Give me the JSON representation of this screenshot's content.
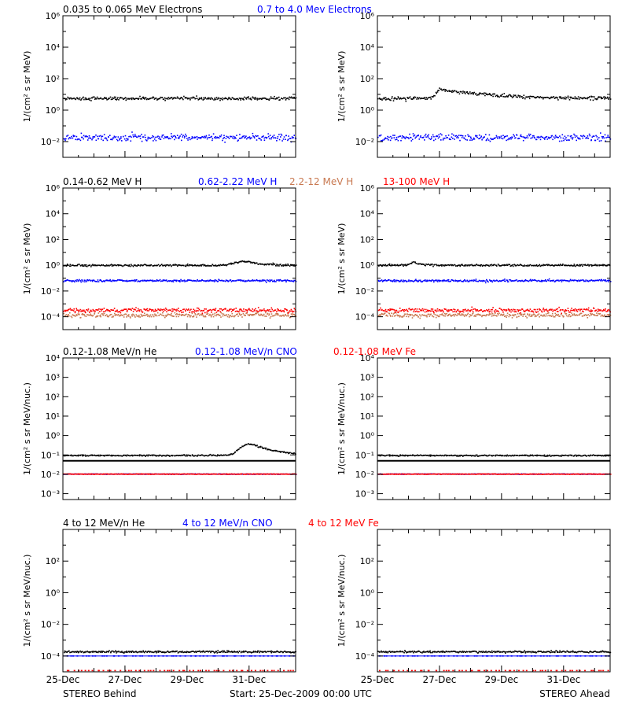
{
  "footer": {
    "behind": "STEREO Behind",
    "ahead": "STEREO Ahead",
    "start": "Start: 25-Dec-2009 00:00 UTC"
  },
  "x_axis": {
    "range": [
      "25-Dec-2009 00:00",
      "01-Jan-2010 12:00"
    ],
    "tick_labels": [
      "25-Dec",
      "27-Dec",
      "29-Dec",
      "31-Dec"
    ]
  },
  "chart_data": [
    {
      "type": "scatter",
      "row": "electrons",
      "side": "STEREO Behind",
      "ylabel": "1/(cm² s sr MeV)",
      "yscale": "log",
      "ylim": [
        0.001,
        1000000
      ],
      "ytick_labels": [
        "10⁻²",
        "10⁰",
        "10²",
        "10⁴",
        "10⁶"
      ],
      "legend_labels": [
        "0.035 to 0.065 MeV Electrons",
        "0.7 to 4.0 Mev Electrons"
      ],
      "series": [
        {
          "name": "0.035 to 0.065 MeV Electrons",
          "color": "#000000",
          "base": 6,
          "spread": 0.09,
          "x": [
            "25-Dec",
            "27-Dec",
            "29-Dec",
            "31-Dec",
            "01-Jan 12:00"
          ],
          "y": [
            6,
            6,
            6,
            6,
            6
          ]
        },
        {
          "name": "0.7 to 4.0 Mev Electrons",
          "color": "#0000ff",
          "base": 0.02,
          "spread": 0.18,
          "x": [
            "25-Dec",
            "27-Dec",
            "29-Dec",
            "31-Dec",
            "01-Jan 12:00"
          ],
          "y": [
            0.02,
            0.02,
            0.02,
            0.02,
            0.02
          ]
        }
      ]
    },
    {
      "type": "scatter",
      "row": "electrons",
      "side": "STEREO Ahead",
      "ylabel": "1/(cm² s sr MeV)",
      "yscale": "log",
      "ylim": [
        0.001,
        1000000
      ],
      "ytick_labels": [
        "10⁻²",
        "10⁰",
        "10²",
        "10⁴",
        "10⁶"
      ],
      "series": [
        {
          "name": "0.035 to 0.065 MeV Electrons",
          "color": "#000000",
          "base": 6,
          "spread": 0.09,
          "bump": {
            "center_day": 2.0,
            "peak": 22,
            "rise": 0.1,
            "decay": 1.2
          },
          "x": [
            "25-Dec",
            "26-Dec 18:00",
            "27-Dec",
            "29-Dec",
            "31-Dec"
          ],
          "y": [
            6,
            6,
            22,
            8,
            6
          ]
        },
        {
          "name": "0.7 to 4.0 Mev Electrons",
          "color": "#0000ff",
          "base": 0.02,
          "spread": 0.18,
          "x": [
            "25-Dec",
            "27-Dec",
            "29-Dec",
            "31-Dec"
          ],
          "y": [
            0.02,
            0.02,
            0.02,
            0.02
          ]
        }
      ]
    },
    {
      "type": "scatter",
      "row": "protons",
      "side": "STEREO Behind",
      "ylabel": "1/(cm² s sr MeV)",
      "yscale": "log",
      "ylim": [
        1e-05,
        1000000
      ],
      "ytick_labels": [
        "10⁻⁴",
        "10⁻²",
        "10⁰",
        "10²",
        "10⁴",
        "10⁶"
      ],
      "legend_labels": [
        "0.14-0.62 MeV H",
        "0.62-2.22 MeV H",
        "2.2-12 MeV H",
        "13-100 MeV H"
      ],
      "series": [
        {
          "name": "0.14-0.62 MeV H",
          "color": "#000000",
          "base": 1.1,
          "spread": 0.06,
          "bump": {
            "center_day": 5.9,
            "peak": 2.2,
            "rise": 0.3,
            "decay": 0.4
          },
          "x": [
            "25-Dec",
            "29-Dec",
            "30-Dec 21:00",
            "31-Dec"
          ],
          "y": [
            1.1,
            1.1,
            2.2,
            1.1
          ]
        },
        {
          "name": "0.62-2.22 MeV H",
          "color": "#0000ff",
          "base": 0.07,
          "spread": 0.07,
          "x": [
            "25-Dec",
            "31-Dec"
          ],
          "y": [
            0.07,
            0.07
          ]
        },
        {
          "name": "2.2-12 MeV H",
          "color": "#c87850",
          "base": 0.00015,
          "spread": 0.14,
          "x": [
            "25-Dec",
            "31-Dec"
          ],
          "y": [
            0.00015,
            0.00015
          ]
        },
        {
          "name": "13-100 MeV H",
          "color": "#ff0000",
          "base": 0.00035,
          "spread": 0.14,
          "x": [
            "25-Dec",
            "31-Dec"
          ],
          "y": [
            0.00035,
            0.00035
          ]
        }
      ]
    },
    {
      "type": "scatter",
      "row": "protons",
      "side": "STEREO Ahead",
      "ylabel": "1/(cm² s sr MeV)",
      "yscale": "log",
      "ylim": [
        1e-05,
        1000000
      ],
      "ytick_labels": [
        "10⁻⁴",
        "10⁻²",
        "10⁰",
        "10²",
        "10⁴",
        "10⁶"
      ],
      "series": [
        {
          "name": "0.14-0.62 MeV H",
          "color": "#000000",
          "base": 1.1,
          "spread": 0.06,
          "bump": {
            "center_day": 1.15,
            "peak": 2.0,
            "rise": 0.1,
            "decay": 0.2
          },
          "x": [
            "25-Dec",
            "26-Dec 04:00",
            "29-Dec",
            "31-Dec"
          ],
          "y": [
            1.1,
            2.0,
            1.1,
            1.1
          ]
        },
        {
          "name": "0.62-2.22 MeV H",
          "color": "#0000ff",
          "base": 0.07,
          "spread": 0.07,
          "x": [
            "25-Dec",
            "31-Dec"
          ],
          "y": [
            0.07,
            0.07
          ]
        },
        {
          "name": "2.2-12 MeV H",
          "color": "#c87850",
          "base": 0.00015,
          "spread": 0.14,
          "x": [
            "25-Dec",
            "31-Dec"
          ],
          "y": [
            0.00015,
            0.00015
          ]
        },
        {
          "name": "13-100 MeV H",
          "color": "#ff0000",
          "base": 0.00035,
          "spread": 0.14,
          "x": [
            "25-Dec",
            "31-Dec"
          ],
          "y": [
            0.00035,
            0.00035
          ]
        }
      ]
    },
    {
      "type": "scatter",
      "row": "suprathermal-ions",
      "side": "STEREO Behind",
      "ylabel": "1/(cm² s sr MeV/nuc.)",
      "yscale": "log",
      "ylim": [
        0.0005,
        10000
      ],
      "ytick_labels": [
        "10⁻³",
        "10⁻²",
        "10⁻¹",
        "10⁰",
        "10¹",
        "10²",
        "10³",
        "10⁴"
      ],
      "legend_labels": [
        "0.12-1.08 MeV/n He",
        "0.12-1.08 MeV/n CNO",
        "0.12-1.08 MeV Fe"
      ],
      "series": [
        {
          "name": "0.12-1.08 MeV/n He",
          "color": "#000000",
          "base": 0.1,
          "spread": 0.03,
          "floor_line": 0.05,
          "bump": {
            "center_day": 6.0,
            "peak": 0.4,
            "rise": 0.25,
            "decay": 0.6
          },
          "x": [
            "25-Dec",
            "29-Dec",
            "31-Dec",
            "01-Jan"
          ],
          "y": [
            0.1,
            0.1,
            0.4,
            0.12
          ]
        },
        {
          "name": "0.12-1.08 MeV/n CNO",
          "color": "#0000ff",
          "base": 0.011,
          "spread": 0.01,
          "x": [
            "25-Dec",
            "31-Dec"
          ],
          "y": [
            0.011,
            0.011
          ]
        },
        {
          "name": "0.12-1.08 MeV Fe",
          "color": "#ff0000",
          "base": 0.011,
          "spread": 0.01,
          "x": [
            "25-Dec",
            "31-Dec"
          ],
          "y": [
            0.011,
            0.011
          ]
        }
      ]
    },
    {
      "type": "scatter",
      "row": "suprathermal-ions",
      "side": "STEREO Ahead",
      "ylabel": "1/(cm² s sr MeV/nuc.)",
      "yscale": "log",
      "ylim": [
        0.0005,
        10000
      ],
      "ytick_labels": [
        "10⁻³",
        "10⁻²",
        "10⁻¹",
        "10⁰",
        "10¹",
        "10²",
        "10³",
        "10⁴"
      ],
      "series": [
        {
          "name": "0.12-1.08 MeV/n He",
          "color": "#000000",
          "base": 0.1,
          "spread": 0.03,
          "floor_line": 0.05,
          "x": [
            "25-Dec",
            "31-Dec"
          ],
          "y": [
            0.1,
            0.1
          ]
        },
        {
          "name": "0.12-1.08 MeV/n CNO",
          "color": "#0000ff",
          "base": 0.011,
          "spread": 0.01,
          "x": [
            "25-Dec",
            "31-Dec"
          ],
          "y": [
            0.011,
            0.011
          ]
        },
        {
          "name": "0.12-1.08 MeV Fe",
          "color": "#ff0000",
          "base": 0.011,
          "spread": 0.01,
          "x": [
            "25-Dec",
            "31-Dec"
          ],
          "y": [
            0.011,
            0.011
          ]
        }
      ]
    },
    {
      "type": "scatter",
      "row": "energetic-ions",
      "side": "STEREO Behind",
      "ylabel": "1/(cm² s sr MeV/nuc.)",
      "yscale": "log",
      "ylim": [
        1e-05,
        10000
      ],
      "ytick_labels": [
        "10⁻⁴",
        "10⁻²",
        "10⁰",
        "10²"
      ],
      "legend_labels": [
        "4 to 12 MeV/n He",
        "4 to 12 MeV/n CNO",
        "4 to 12 MeV Fe"
      ],
      "series": [
        {
          "name": "4 to 12 MeV/n He",
          "color": "#000000",
          "base": 0.0002,
          "spread": 0.05,
          "x": [
            "25-Dec",
            "31-Dec"
          ],
          "y": [
            0.0002,
            0.0002
          ]
        },
        {
          "name": "4 to 12 MeV/n CNO",
          "color": "#0000ff",
          "base": 0.0001,
          "spread": 0.0,
          "floor_line": 0.0001,
          "x": [
            "25-Dec",
            "31-Dec"
          ],
          "y": [
            0.0001,
            0.0001
          ]
        },
        {
          "name": "4 to 12 MeV Fe",
          "color": "#ff0000",
          "base": 1.2e-05,
          "spread": 0.0,
          "x": [
            "25-Dec",
            "31-Dec"
          ],
          "y": [
            1.2e-05,
            1.2e-05
          ]
        }
      ]
    },
    {
      "type": "scatter",
      "row": "energetic-ions",
      "side": "STEREO Ahead",
      "ylabel": "1/(cm² s sr MeV/nuc.)",
      "yscale": "log",
      "ylim": [
        1e-05,
        10000
      ],
      "ytick_labels": [
        "10⁻⁴",
        "10⁻²",
        "10⁰",
        "10²"
      ],
      "series": [
        {
          "name": "4 to 12 MeV/n He",
          "color": "#000000",
          "base": 0.0002,
          "spread": 0.05,
          "x": [
            "25-Dec",
            "31-Dec"
          ],
          "y": [
            0.0002,
            0.0002
          ]
        },
        {
          "name": "4 to 12 MeV/n CNO",
          "color": "#0000ff",
          "base": 0.0001,
          "spread": 0.0,
          "floor_line": 0.0001,
          "x": [
            "25-Dec",
            "31-Dec"
          ],
          "y": [
            0.0001,
            0.0001
          ]
        },
        {
          "name": "4 to 12 MeV Fe",
          "color": "#ff0000",
          "base": 1.2e-05,
          "spread": 0.0,
          "x": [
            "25-Dec",
            "31-Dec"
          ],
          "y": [
            1.2e-05,
            1.2e-05
          ]
        }
      ]
    }
  ]
}
